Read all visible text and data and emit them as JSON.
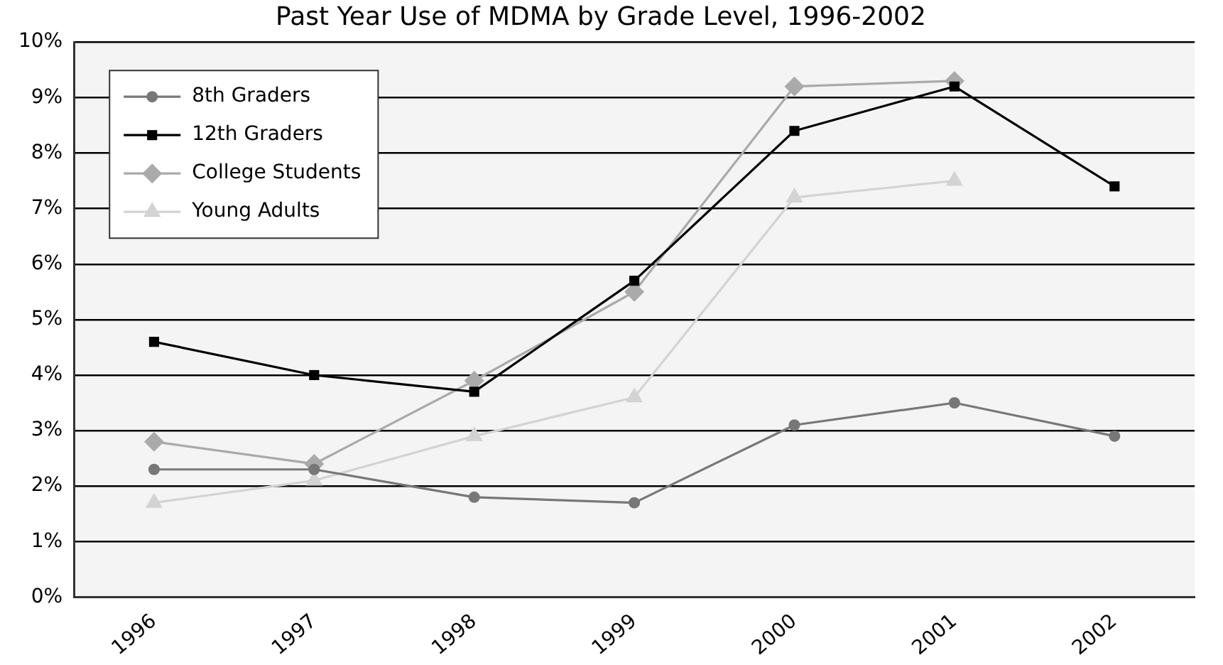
{
  "chart_data": {
    "type": "line",
    "title": "Past Year Use of MDMA by Grade Level, 1996-2002",
    "categories": [
      "1996",
      "1997",
      "1998",
      "1999",
      "2000",
      "2001",
      "2002"
    ],
    "series": [
      {
        "name": "8th Graders",
        "color": "#777777",
        "marker": "circle",
        "values": [
          2.3,
          2.3,
          1.8,
          1.7,
          3.1,
          3.5,
          2.9
        ]
      },
      {
        "name": "12th Graders",
        "color": "#000000",
        "marker": "square",
        "values": [
          4.6,
          4.0,
          3.7,
          5.7,
          8.4,
          9.2,
          7.4
        ]
      },
      {
        "name": "College Students",
        "color": "#aaaaaa",
        "marker": "diamond",
        "values": [
          2.8,
          2.4,
          3.9,
          5.5,
          9.2,
          9.3,
          null
        ]
      },
      {
        "name": "Young Adults",
        "color": "#d3d3d3",
        "marker": "triangle",
        "values": [
          1.7,
          2.1,
          2.9,
          3.6,
          7.2,
          7.5,
          null
        ]
      }
    ],
    "ylim": [
      0,
      10
    ],
    "yticks": [
      {
        "value": 0,
        "label": "0%"
      },
      {
        "value": 1,
        "label": "1%"
      },
      {
        "value": 2,
        "label": "2%"
      },
      {
        "value": 3,
        "label": "3%"
      },
      {
        "value": 4,
        "label": "4%"
      },
      {
        "value": 5,
        "label": "5%"
      },
      {
        "value": 6,
        "label": "6%"
      },
      {
        "value": 7,
        "label": "7%"
      },
      {
        "value": 8,
        "label": "8%"
      },
      {
        "value": 9,
        "label": "9%"
      },
      {
        "value": 10,
        "label": "10%"
      }
    ],
    "grid": "y",
    "legend": "top left",
    "line_style": "solid"
  }
}
